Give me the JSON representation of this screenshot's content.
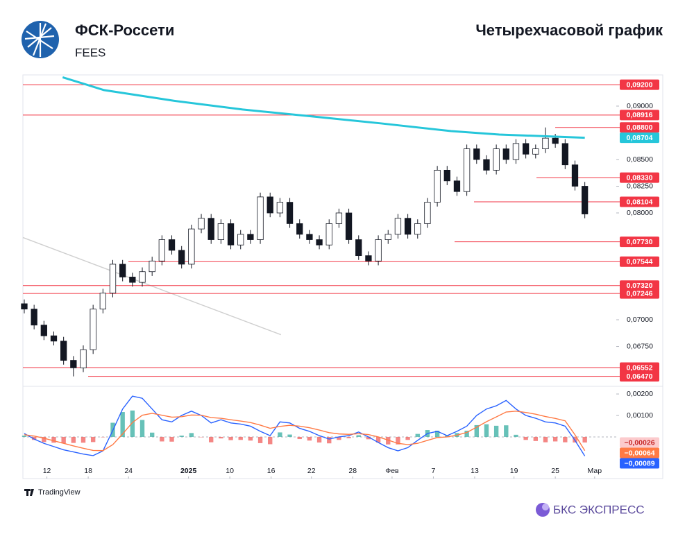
{
  "header": {
    "title": "ФСК-Россети",
    "ticker": "FEES",
    "period": "Четырехчасовой график"
  },
  "footer": {
    "source": "TradingView",
    "brand": "БКС ЭКСПРЕСС"
  },
  "chart_data": [
    {
      "type": "candlestick",
      "xlim": [
        -0.14,
        60.2
      ],
      "ylim": [
        0.06377,
        0.09292
      ],
      "yticks": [
        {
          "value": 0.09,
          "label": "0,09000"
        },
        {
          "value": 0.085,
          "label": "0,08500"
        },
        {
          "value": 0.0825,
          "label": "0,08250"
        },
        {
          "value": 0.08,
          "label": "0,08000"
        },
        {
          "value": 0.07,
          "label": "0,07000"
        },
        {
          "value": 0.0675,
          "label": "0,06750"
        }
      ],
      "ohlc": {
        "up_color": "#ffffff",
        "down_color": "#131722",
        "open": [
          0.0715,
          0.071,
          0.0695,
          0.0685,
          0.068,
          0.0662,
          0.0655,
          0.0672,
          0.071,
          0.0725,
          0.0752,
          0.074,
          0.0735,
          0.0745,
          0.0755,
          0.0775,
          0.0765,
          0.0752,
          0.0785,
          0.0795,
          0.0775,
          0.079,
          0.077,
          0.078,
          0.0775,
          0.0815,
          0.08,
          0.081,
          0.079,
          0.078,
          0.0775,
          0.077,
          0.079,
          0.08,
          0.0775,
          0.076,
          0.0755,
          0.0775,
          0.078,
          0.0795,
          0.078,
          0.079,
          0.081,
          0.084,
          0.083,
          0.082,
          0.086,
          0.085,
          0.084,
          0.086,
          0.085,
          0.0865,
          0.0855,
          0.086,
          0.087,
          0.0865,
          0.0845,
          0.0825
        ],
        "high": [
          0.0719,
          0.0714,
          0.0699,
          0.0689,
          0.0684,
          0.0666,
          0.0676,
          0.0714,
          0.0729,
          0.0756,
          0.0756,
          0.0744,
          0.0749,
          0.0759,
          0.0779,
          0.0779,
          0.0769,
          0.0789,
          0.0799,
          0.0799,
          0.0794,
          0.0794,
          0.0784,
          0.0784,
          0.0819,
          0.0819,
          0.0814,
          0.0814,
          0.0794,
          0.0784,
          0.0779,
          0.0794,
          0.0804,
          0.0804,
          0.0779,
          0.0764,
          0.0779,
          0.0784,
          0.0799,
          0.0799,
          0.0794,
          0.0814,
          0.0844,
          0.0844,
          0.0834,
          0.0864,
          0.0864,
          0.0854,
          0.0864,
          0.0864,
          0.0869,
          0.0869,
          0.0864,
          0.088,
          0.0874,
          0.0869,
          0.0849,
          0.0829
        ],
        "low": [
          0.0706,
          0.0691,
          0.0681,
          0.0676,
          0.0658,
          0.0647,
          0.0651,
          0.0668,
          0.0706,
          0.0721,
          0.0736,
          0.0731,
          0.0731,
          0.0741,
          0.0751,
          0.0761,
          0.0748,
          0.0748,
          0.0781,
          0.0771,
          0.0771,
          0.0766,
          0.0766,
          0.0771,
          0.0771,
          0.0796,
          0.0796,
          0.0786,
          0.0776,
          0.0771,
          0.0766,
          0.0766,
          0.0786,
          0.0771,
          0.0756,
          0.0751,
          0.0751,
          0.0771,
          0.0776,
          0.0776,
          0.0776,
          0.0786,
          0.0806,
          0.0826,
          0.0816,
          0.0816,
          0.0846,
          0.0836,
          0.0836,
          0.0846,
          0.0846,
          0.0851,
          0.0851,
          0.0856,
          0.0861,
          0.0841,
          0.0821,
          0.0795
        ],
        "close": [
          0.071,
          0.0695,
          0.0685,
          0.068,
          0.0662,
          0.0655,
          0.0672,
          0.071,
          0.0725,
          0.0752,
          0.074,
          0.0735,
          0.0745,
          0.0755,
          0.0775,
          0.0765,
          0.0752,
          0.0785,
          0.0795,
          0.0775,
          0.079,
          0.077,
          0.078,
          0.0775,
          0.0815,
          0.08,
          0.081,
          0.079,
          0.078,
          0.0775,
          0.077,
          0.079,
          0.08,
          0.0775,
          0.076,
          0.0755,
          0.0775,
          0.078,
          0.0795,
          0.078,
          0.079,
          0.081,
          0.084,
          0.083,
          0.082,
          0.086,
          0.085,
          0.084,
          0.086,
          0.085,
          0.0865,
          0.0855,
          0.086,
          0.087,
          0.0865,
          0.0845,
          0.0825,
          0.0799
        ]
      },
      "moving_average": {
        "color": "#26c6da",
        "x": [
          3.9,
          8.1,
          15.2,
          22.2,
          29.3,
          36.3,
          43.4,
          48.3,
          57
        ],
        "values": [
          0.0927,
          0.0915,
          0.0905,
          0.08968,
          0.08903,
          0.08838,
          0.08766,
          0.08734,
          0.08704
        ],
        "last_label": "0,08704"
      },
      "levels": {
        "color": "#f23645",
        "values": [
          {
            "value": 0.092,
            "label": "0,09200"
          },
          {
            "value": 0.08916,
            "label": "0,08916"
          },
          {
            "value": 0.088,
            "label": "0,08800"
          },
          {
            "value": 0.0833,
            "label": "0,08330"
          },
          {
            "value": 0.08104,
            "label": "0,08104"
          },
          {
            "value": 0.0773,
            "label": "0,07730"
          },
          {
            "value": 0.07544,
            "label": "0,07544"
          },
          {
            "value": 0.0732,
            "label": "0,07320"
          },
          {
            "value": 0.07246,
            "label": "0,07246"
          },
          {
            "value": 0.06552,
            "label": "0,06552"
          },
          {
            "value": 0.0647,
            "label": "0,06470"
          }
        ]
      },
      "trendline": {
        "color": "#cfcfcf",
        "x": [
          -0.14,
          26.1
        ],
        "values": [
          0.0777,
          0.0686
        ]
      }
    },
    {
      "type": "macd",
      "xlim": [
        -0.14,
        60.2
      ],
      "ylim": [
        -0.00194,
        0.00226
      ],
      "yticks": [
        {
          "value": 0.002,
          "label": "0,00200"
        },
        {
          "value": 0.001,
          "label": "0,00100"
        }
      ],
      "xticks": [
        {
          "value": 2.3,
          "label": "12"
        },
        {
          "value": 6.5,
          "label": "18"
        },
        {
          "value": 10.6,
          "label": "24"
        },
        {
          "value": 16.7,
          "label": "2025"
        },
        {
          "value": 20.9,
          "label": "10"
        },
        {
          "value": 25.1,
          "label": "16"
        },
        {
          "value": 29.2,
          "label": "22"
        },
        {
          "value": 33.4,
          "label": "28"
        },
        {
          "value": 37.4,
          "label": "Фев"
        },
        {
          "value": 41.6,
          "label": "7"
        },
        {
          "value": 45.8,
          "label": "13"
        },
        {
          "value": 49.8,
          "label": "19"
        },
        {
          "value": 54.0,
          "label": "25"
        },
        {
          "value": 58.0,
          "label": "Мар"
        }
      ],
      "histogram": {
        "up_color": "#26a69a",
        "down_color": "#ef5350",
        "last_label": "−0,00026",
        "label_color": "#fccbcd",
        "values": [
          6e-05,
          -0.00014,
          -0.00024,
          -0.00027,
          -0.0003,
          -0.00028,
          -0.00027,
          -0.00024,
          -1e-05,
          0.00066,
          0.00116,
          0.00123,
          0.00079,
          0.0002,
          -0.00021,
          -0.00022,
          6e-05,
          0.00018,
          -1e-05,
          -0.00025,
          -7e-05,
          -0.00015,
          -0.00014,
          -0.00017,
          -0.00029,
          -0.00034,
          0.00021,
          0.00011,
          -0.0001,
          -0.00017,
          -0.00026,
          -0.0003,
          -0.00014,
          -6e-05,
          8e-05,
          -0.00011,
          -0.00026,
          -0.00035,
          -0.00035,
          -0.00014,
          0.00014,
          0.00032,
          0.00029,
          6e-05,
          0.00018,
          0.00029,
          0.00055,
          0.00059,
          0.00052,
          0.00054,
          0.0001,
          -0.00014,
          -0.00019,
          -0.00025,
          -0.00021,
          -0.00025,
          -0.00026,
          -0.00026
        ]
      },
      "series": [
        {
          "color": "#2962ff",
          "last_label": "−0,00089",
          "values": [
            0.00016,
            -0.0001,
            -0.0003,
            -0.00045,
            -0.0006,
            -0.0007,
            -0.0008,
            -0.00087,
            -0.00065,
            0.0003,
            0.0013,
            0.0019,
            0.0018,
            0.0013,
            0.0008,
            0.0007,
            0.001,
            0.0012,
            0.001,
            0.00065,
            0.0008,
            0.00065,
            0.0006,
            0.0005,
            0.00026,
            6e-05,
            0.0007,
            0.00065,
            0.0004,
            0.00026,
            6e-05,
            -0.0001,
            0,
            6e-05,
            0.00023,
            0,
            -0.00026,
            -0.0005,
            -0.00065,
            -0.0005,
            -0.00016,
            0.00016,
            0.00026,
            6e-05,
            0.00026,
            0.0005,
            0.001,
            0.0013,
            0.00145,
            0.0017,
            0.0013,
            0.001,
            0.00087,
            0.0007,
            0.00065,
            0.0005,
            -0.00016,
            -0.00089
          ]
        },
        {
          "color": "#ff7a45",
          "last_label": "−0,00064",
          "values": [
            0.0001,
            4e-05,
            -6e-05,
            -0.00018,
            -0.0003,
            -0.00042,
            -0.00053,
            -0.00063,
            -0.00064,
            -0.00036,
            0.00014,
            0.00067,
            0.00101,
            0.0011,
            0.00101,
            0.00092,
            0.00094,
            0.00102,
            0.00101,
            0.0009,
            0.00087,
            0.0008,
            0.00074,
            0.00067,
            0.00055,
            0.0004,
            0.00049,
            0.00054,
            0.0005,
            0.00043,
            0.00032,
            0.0002,
            0.00014,
            0.00012,
            0.00015,
            0.00011,
            0,
            -0.00015,
            -0.0003,
            -0.00036,
            -0.0003,
            -0.00016,
            -3e-05,
            0,
            8e-05,
            0.00021,
            0.00045,
            0.00071,
            0.00093,
            0.00116,
            0.0012,
            0.00114,
            0.00106,
            0.00095,
            0.00086,
            0.00075,
            0.0001,
            -0.00064
          ]
        }
      ]
    }
  ]
}
